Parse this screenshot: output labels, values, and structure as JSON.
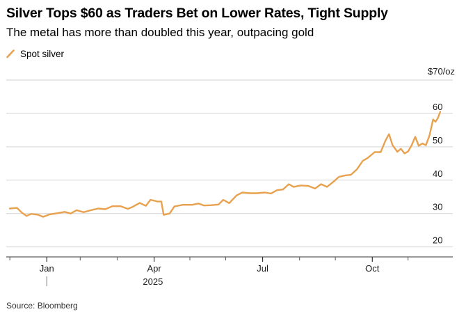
{
  "chart_data": {
    "type": "line",
    "title": "Silver Tops $60 as Traders Bet on Lower Rates, Tight Supply",
    "subtitle": "The metal has more than doubled this year, outpacing gold",
    "source": "Source: Bloomberg",
    "ylabel": "$70/oz",
    "ylim": [
      17,
      70
    ],
    "yticks": [
      20,
      30,
      40,
      50,
      60
    ],
    "ytick_labels": [
      "20",
      "30",
      "40",
      "50",
      "60"
    ],
    "xlim": [
      -3,
      347
    ],
    "xticks": [
      {
        "day": 31,
        "label": "Jan"
      },
      {
        "day": 121,
        "label": "Apr"
      },
      {
        "day": 212,
        "label": "Jul"
      },
      {
        "day": 304,
        "label": "Oct"
      }
    ],
    "x_minor_ticks": [
      0,
      59,
      90,
      151,
      181,
      243,
      273,
      334
    ],
    "year_label": "2025",
    "grid": true,
    "line_color": "#e8a24f",
    "legend_position": "top-left",
    "series": [
      {
        "name": "Spot silver",
        "points": [
          [
            0,
            31.5
          ],
          [
            6,
            31.7
          ],
          [
            10,
            30.3
          ],
          [
            14,
            29.3
          ],
          [
            18,
            29.9
          ],
          [
            24,
            29.6
          ],
          [
            28,
            29.0
          ],
          [
            33,
            29.7
          ],
          [
            40,
            30.1
          ],
          [
            46,
            30.5
          ],
          [
            51,
            30.0
          ],
          [
            56,
            31.0
          ],
          [
            62,
            30.4
          ],
          [
            68,
            31.0
          ],
          [
            74,
            31.5
          ],
          [
            80,
            31.3
          ],
          [
            86,
            32.2
          ],
          [
            93,
            32.2
          ],
          [
            99,
            31.4
          ],
          [
            103,
            32.0
          ],
          [
            109,
            33.2
          ],
          [
            114,
            32.3
          ],
          [
            118,
            34.1
          ],
          [
            124,
            33.6
          ],
          [
            127,
            33.6
          ],
          [
            129,
            29.6
          ],
          [
            134,
            30.0
          ],
          [
            138,
            32.1
          ],
          [
            145,
            32.6
          ],
          [
            153,
            32.6
          ],
          [
            158,
            33.0
          ],
          [
            163,
            32.4
          ],
          [
            169,
            32.5
          ],
          [
            175,
            32.7
          ],
          [
            179,
            34.1
          ],
          [
            184,
            33.1
          ],
          [
            190,
            35.4
          ],
          [
            195,
            36.3
          ],
          [
            201,
            36.1
          ],
          [
            207,
            36.1
          ],
          [
            214,
            36.3
          ],
          [
            219,
            36.0
          ],
          [
            224,
            37.0
          ],
          [
            229,
            37.2
          ],
          [
            234,
            38.8
          ],
          [
            238,
            38.0
          ],
          [
            244,
            38.4
          ],
          [
            250,
            38.3
          ],
          [
            256,
            37.5
          ],
          [
            261,
            38.8
          ],
          [
            266,
            38.0
          ],
          [
            272,
            39.7
          ],
          [
            276,
            41.0
          ],
          [
            281,
            41.4
          ],
          [
            286,
            41.6
          ],
          [
            291,
            43.2
          ],
          [
            296,
            45.8
          ],
          [
            300,
            46.6
          ],
          [
            306,
            48.4
          ],
          [
            311,
            48.4
          ],
          [
            315,
            51.8
          ],
          [
            318,
            53.8
          ],
          [
            321,
            50.5
          ],
          [
            325,
            48.5
          ],
          [
            328,
            49.4
          ],
          [
            331,
            48.0
          ],
          [
            334,
            48.6
          ],
          [
            337,
            50.5
          ],
          [
            340,
            53.0
          ],
          [
            343,
            50.3
          ],
          [
            346,
            51.0
          ],
          [
            349,
            50.5
          ],
          [
            352,
            53.5
          ],
          [
            355,
            58.2
          ],
          [
            357,
            57.5
          ],
          [
            359,
            58.6
          ],
          [
            361,
            60.5
          ]
        ]
      }
    ]
  }
}
